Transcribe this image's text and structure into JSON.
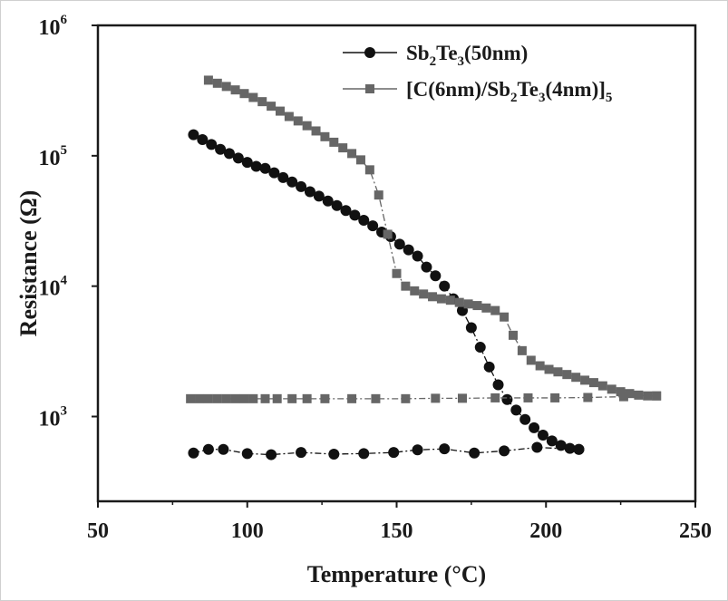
{
  "chart_data": {
    "type": "scatter",
    "xlabel": "Temperature (°C)",
    "ylabel": "Resistance (Ω)",
    "xlim": [
      50,
      250
    ],
    "ylim_log10": [
      2.35,
      6
    ],
    "yscale": "log",
    "x_ticks": [
      "50",
      "100",
      "150",
      "200",
      "250"
    ],
    "y_ticks": [
      {
        "base": "10",
        "exp": "3"
      },
      {
        "base": "10",
        "exp": "4"
      },
      {
        "base": "10",
        "exp": "5"
      },
      {
        "base": "10",
        "exp": "6"
      }
    ],
    "legend_position": "top-right",
    "series": [
      {
        "name_parts": [
          [
            "Sb",
            ""
          ],
          [
            "2",
            "sub"
          ],
          [
            "Te",
            ""
          ],
          [
            "3",
            "sub"
          ],
          [
            "(50nm)",
            ""
          ]
        ],
        "marker": "circle",
        "color": "#111111",
        "heating": {
          "x": [
            82,
            85,
            88,
            91,
            94,
            97,
            100,
            103,
            106,
            109,
            112,
            115,
            118,
            121,
            124,
            127,
            130,
            133,
            136,
            139,
            142,
            145,
            148,
            151,
            154,
            157,
            160,
            163,
            166,
            169,
            172,
            175,
            178,
            181,
            184,
            187,
            190,
            193,
            196,
            199,
            202,
            205,
            208,
            211
          ],
          "y": [
            145000,
            133000,
            122000,
            112000,
            104000,
            96000,
            89000,
            83000,
            80000,
            74000,
            68000,
            63000,
            58000,
            53000,
            49000,
            45000,
            41500,
            38000,
            35000,
            32000,
            29000,
            26000,
            24000,
            21000,
            19000,
            17000,
            14000,
            12000,
            10000,
            8000,
            6500,
            4800,
            3400,
            2400,
            1750,
            1350,
            1120,
            950,
            820,
            720,
            650,
            600,
            570,
            560
          ]
        },
        "cooling": {
          "x": [
            211,
            197,
            186,
            176,
            166,
            157,
            149,
            139,
            129,
            118,
            108,
            100,
            92,
            87,
            82
          ],
          "y": [
            560,
            580,
            545,
            525,
            565,
            555,
            530,
            520,
            515,
            530,
            510,
            520,
            560,
            560,
            525
          ]
        }
      },
      {
        "name_parts": [
          [
            "[C(6nm)/Sb",
            ""
          ],
          [
            "2",
            "sub"
          ],
          [
            "Te",
            ""
          ],
          [
            "3",
            "sub"
          ],
          [
            "(4nm)]",
            ""
          ],
          [
            "5",
            "sub"
          ]
        ],
        "marker": "square",
        "color": "#666666",
        "heating": {
          "x": [
            87,
            90,
            93,
            96,
            99,
            102,
            105,
            108,
            111,
            114,
            117,
            120,
            123,
            126,
            129,
            132,
            135,
            138,
            141,
            144,
            147,
            150,
            153,
            156,
            159,
            162,
            165,
            168,
            171,
            174,
            177,
            180,
            183,
            186,
            189,
            192,
            195,
            198,
            201,
            204,
            207,
            210,
            213,
            216,
            219,
            222,
            225,
            228,
            231,
            234,
            237
          ],
          "y": [
            380000,
            360000,
            340000,
            320000,
            300000,
            280000,
            260000,
            240000,
            220000,
            200000,
            185000,
            170000,
            155000,
            140000,
            127000,
            115000,
            104000,
            93000,
            78000,
            50000,
            25000,
            12500,
            10000,
            9200,
            8700,
            8300,
            8000,
            7800,
            7500,
            7300,
            7100,
            6800,
            6500,
            5800,
            4200,
            3200,
            2700,
            2450,
            2300,
            2200,
            2100,
            2000,
            1900,
            1820,
            1720,
            1620,
            1550,
            1500,
            1460,
            1440,
            1440
          ]
        },
        "cooling": {
          "x": [
            237,
            226,
            214,
            203,
            194,
            183,
            172,
            163,
            153,
            143,
            135,
            126,
            120,
            115,
            110,
            106,
            102,
            99,
            96,
            93,
            90,
            87,
            84,
            81
          ],
          "y": [
            1440,
            1420,
            1400,
            1390,
            1390,
            1390,
            1380,
            1380,
            1370,
            1370,
            1370,
            1370,
            1370,
            1370,
            1370,
            1370,
            1370,
            1370,
            1370,
            1370,
            1370,
            1370,
            1370,
            1370
          ]
        }
      }
    ]
  }
}
